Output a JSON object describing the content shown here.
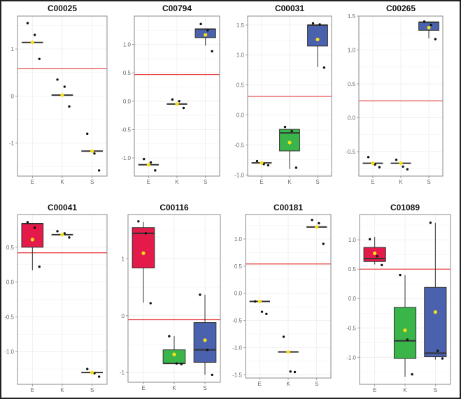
{
  "colors": {
    "E": "#e31a4a",
    "K": "#39b54a",
    "S": "#4a62ad",
    "threshold": "#e8393a",
    "mean": "#f7e017",
    "point": "#111111",
    "box_stroke": "#333333",
    "grid": "#ececec",
    "axis": "#888888"
  },
  "chart_data": [
    {
      "type": "box",
      "title": "C00025",
      "categories": [
        "E",
        "K",
        "S"
      ],
      "yticks": [
        -1,
        0,
        1
      ],
      "ytick_labels": [
        "-1",
        "0",
        "1"
      ],
      "ylim": [
        -1.7,
        1.7
      ],
      "threshold": 0.58,
      "groups": [
        {
          "name": "E",
          "q1": 1.14,
          "median": 1.14,
          "q3": 1.14,
          "whisker_low": 1.14,
          "whisker_high": 1.14,
          "mean": 1.14,
          "points": [
            1.55,
            1.3,
            0.79
          ],
          "filled": false
        },
        {
          "name": "K",
          "q1": 0.02,
          "median": 0.02,
          "q3": 0.02,
          "whisker_low": 0.02,
          "whisker_high": 0.02,
          "mean": 0.02,
          "points": [
            0.35,
            0.2,
            -0.22
          ],
          "filled": false
        },
        {
          "name": "S",
          "q1": -1.17,
          "median": -1.17,
          "q3": -1.17,
          "whisker_low": -1.17,
          "whisker_high": -1.17,
          "mean": -1.17,
          "points": [
            -0.8,
            -1.22,
            -1.58
          ],
          "filled": false
        }
      ]
    },
    {
      "type": "box",
      "title": "C00794",
      "categories": [
        "E",
        "K",
        "S"
      ],
      "yticks": [
        -1.0,
        -0.5,
        0.0,
        0.5,
        1.0
      ],
      "ytick_labels": [
        "-1.0",
        "-0.5",
        "0.0",
        "0.5",
        "1.0"
      ],
      "ylim": [
        -1.32,
        1.5
      ],
      "threshold": 0.47,
      "groups": [
        {
          "name": "E",
          "q1": -1.12,
          "median": -1.12,
          "q3": -1.12,
          "whisker_low": -1.12,
          "whisker_high": -1.12,
          "mean": -1.12,
          "points": [
            -1.02,
            -1.08,
            -1.22
          ],
          "filled": false
        },
        {
          "name": "K",
          "q1": -0.05,
          "median": -0.05,
          "q3": -0.05,
          "whisker_low": -0.05,
          "whisker_high": -0.05,
          "mean": -0.05,
          "points": [
            0.03,
            0.0,
            -0.12
          ],
          "filled": false
        },
        {
          "name": "S",
          "q1": 1.12,
          "median": 1.27,
          "q3": 1.27,
          "whisker_low": 0.98,
          "whisker_high": 1.27,
          "mean": 1.17,
          "points": [
            1.36,
            1.25,
            0.88
          ],
          "filled": true
        }
      ]
    },
    {
      "type": "box",
      "title": "C00031",
      "categories": [
        "E",
        "K",
        "S"
      ],
      "yticks": [
        -1.0,
        -0.5,
        0.0,
        0.5,
        1.0,
        1.5
      ],
      "ytick_labels": [
        "-1.0",
        "-0.5",
        "0.0",
        "0.5",
        "1.0",
        "1.5"
      ],
      "ylim": [
        -1.02,
        1.65
      ],
      "threshold": 0.31,
      "groups": [
        {
          "name": "E",
          "q1": -0.8,
          "median": -0.8,
          "q3": -0.8,
          "whisker_low": -0.8,
          "whisker_high": -0.8,
          "mean": -0.8,
          "points": [
            -0.77,
            -0.82,
            -0.84
          ],
          "filled": false
        },
        {
          "name": "K",
          "q1": -0.6,
          "median": -0.3,
          "q3": -0.24,
          "whisker_low": -0.9,
          "whisker_high": -0.24,
          "mean": -0.46,
          "points": [
            -0.2,
            -0.27,
            -0.88
          ],
          "filled": true
        },
        {
          "name": "S",
          "q1": 1.15,
          "median": 1.5,
          "q3": 1.5,
          "whisker_low": 0.8,
          "whisker_high": 1.5,
          "mean": 1.26,
          "points": [
            1.53,
            1.51,
            0.79
          ],
          "filled": true
        }
      ]
    },
    {
      "type": "box",
      "title": "C00265",
      "categories": [
        "E",
        "K",
        "S"
      ],
      "yticks": [
        -0.5,
        0.0,
        0.5,
        1.0,
        1.5
      ],
      "ytick_labels": [
        "-0.5",
        "0.0",
        "0.5",
        "1.0",
        "1.5"
      ],
      "ylim": [
        -0.86,
        1.5
      ],
      "threshold": 0.25,
      "groups": [
        {
          "name": "E",
          "q1": -0.67,
          "median": -0.67,
          "q3": -0.67,
          "whisker_low": -0.67,
          "whisker_high": -0.67,
          "mean": -0.67,
          "points": [
            -0.58,
            -0.69,
            -0.73
          ],
          "filled": false
        },
        {
          "name": "K",
          "q1": -0.67,
          "median": -0.67,
          "q3": -0.67,
          "whisker_low": -0.67,
          "whisker_high": -0.67,
          "mean": -0.67,
          "points": [
            -0.62,
            -0.72,
            -0.76
          ],
          "filled": false
        },
        {
          "name": "S",
          "q1": 1.29,
          "median": 1.41,
          "q3": 1.41,
          "whisker_low": 1.17,
          "whisker_high": 1.41,
          "mean": 1.33,
          "points": [
            1.42,
            1.37,
            1.16
          ],
          "filled": true
        }
      ]
    },
    {
      "type": "box",
      "title": "C00041",
      "categories": [
        "E",
        "K",
        "S"
      ],
      "yticks": [
        -1.0,
        -0.5,
        0.0,
        0.5
      ],
      "ytick_labels": [
        "-1.0",
        "-0.5",
        "0.0",
        "0.5"
      ],
      "ylim": [
        -1.47,
        0.97
      ],
      "threshold": 0.42,
      "groups": [
        {
          "name": "E",
          "q1": 0.5,
          "median": 0.84,
          "q3": 0.84,
          "whisker_low": 0.17,
          "whisker_high": 0.84,
          "mean": 0.61,
          "points": [
            0.86,
            0.78,
            0.22
          ],
          "filled": true
        },
        {
          "name": "K",
          "q1": 0.68,
          "median": 0.68,
          "q3": 0.68,
          "whisker_low": 0.68,
          "whisker_high": 0.68,
          "mean": 0.68,
          "points": [
            0.73,
            0.7,
            0.64
          ],
          "filled": false
        },
        {
          "name": "S",
          "q1": -1.3,
          "median": -1.3,
          "q3": -1.3,
          "whisker_low": -1.3,
          "whisker_high": -1.3,
          "mean": -1.3,
          "points": [
            -1.25,
            -1.31,
            -1.36
          ],
          "filled": false
        }
      ]
    },
    {
      "type": "box",
      "title": "C00116",
      "categories": [
        "E",
        "K",
        "S"
      ],
      "yticks": [
        -1,
        0,
        1
      ],
      "ytick_labels": [
        "-1",
        "0",
        "1"
      ],
      "ylim": [
        -1.17,
        1.78
      ],
      "threshold": -0.07,
      "groups": [
        {
          "name": "E",
          "q1": 0.84,
          "median": 1.45,
          "q3": 1.55,
          "whisker_low": 0.23,
          "whisker_high": 1.65,
          "mean": 1.1,
          "points": [
            1.66,
            1.45,
            0.22
          ],
          "filled": true
        },
        {
          "name": "K",
          "q1": -0.84,
          "median": -0.84,
          "q3": -0.6,
          "whisker_low": -0.84,
          "whisker_high": -0.36,
          "mean": -0.68,
          "points": [
            -0.36,
            -0.84,
            -0.85
          ],
          "filled": true
        },
        {
          "name": "S",
          "q1": -0.82,
          "median": -0.6,
          "q3": -0.12,
          "whisker_low": -1.04,
          "whisker_high": 0.37,
          "mean": -0.43,
          "points": [
            0.37,
            -0.6,
            -1.04
          ],
          "filled": true
        }
      ]
    },
    {
      "type": "box",
      "title": "C00181",
      "categories": [
        "E",
        "K",
        "S"
      ],
      "yticks": [
        -1.5,
        -1.0,
        -0.5,
        0.0,
        0.5,
        1.0
      ],
      "ytick_labels": [
        "-1.5",
        "-1.0",
        "-0.5",
        "0.0",
        "0.5",
        "1.0"
      ],
      "ylim": [
        -1.56,
        1.45
      ],
      "threshold": 0.54,
      "groups": [
        {
          "name": "E",
          "q1": -0.15,
          "median": -0.15,
          "q3": -0.15,
          "whisker_low": -0.15,
          "whisker_high": -0.15,
          "mean": -0.15,
          "points": [
            -0.15,
            -0.34,
            -0.38
          ],
          "filled": false
        },
        {
          "name": "K",
          "q1": -1.08,
          "median": -1.08,
          "q3": -1.08,
          "whisker_low": -1.08,
          "whisker_high": -1.08,
          "mean": -1.08,
          "points": [
            -0.8,
            -1.44,
            -1.45
          ],
          "filled": false
        },
        {
          "name": "S",
          "q1": 1.22,
          "median": 1.22,
          "q3": 1.22,
          "whisker_low": 1.22,
          "whisker_high": 1.22,
          "mean": 1.22,
          "points": [
            1.35,
            1.29,
            0.91
          ],
          "filled": false
        }
      ]
    },
    {
      "type": "box",
      "title": "C01089",
      "categories": [
        "E",
        "K",
        "S"
      ],
      "yticks": [
        -1.0,
        -0.5,
        0.0,
        0.5,
        1.0
      ],
      "ytick_labels": [
        "-1.0",
        "-0.5",
        "0.0",
        "0.5",
        "1.0"
      ],
      "ylim": [
        -1.46,
        1.43
      ],
      "threshold": 0.5,
      "groups": [
        {
          "name": "E",
          "q1": 0.63,
          "median": 0.68,
          "q3": 0.87,
          "whisker_low": 0.58,
          "whisker_high": 1.05,
          "mean": 0.77,
          "points": [
            1.01,
            0.72,
            0.57
          ],
          "filled": true
        },
        {
          "name": "K",
          "q1": -1.02,
          "median": -0.72,
          "q3": -0.15,
          "whisker_low": -1.33,
          "whisker_high": 0.4,
          "mean": -0.54,
          "points": [
            0.4,
            -0.7,
            -1.29
          ],
          "filled": true
        },
        {
          "name": "S",
          "q1": -0.99,
          "median": -0.93,
          "q3": 0.19,
          "whisker_low": -1.04,
          "whisker_high": 1.29,
          "mean": -0.23,
          "points": [
            1.29,
            -0.89,
            -1.02
          ],
          "filled": true
        }
      ]
    }
  ]
}
